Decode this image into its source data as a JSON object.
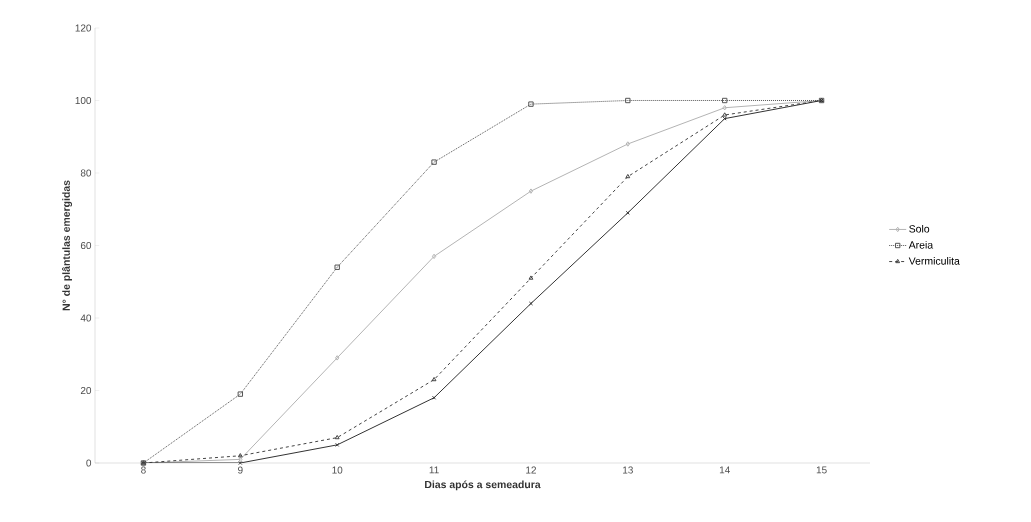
{
  "chart_data": {
    "type": "line",
    "xlabel": "Dias após a semeadura",
    "ylabel": "N° de plântulas emergidas",
    "x": [
      8,
      9,
      10,
      11,
      12,
      13,
      14,
      15
    ],
    "series": [
      {
        "name": "Solo",
        "color": "#b4b4b4",
        "marker": "diamond",
        "line_style": "solid",
        "values": [
          0,
          1,
          29,
          57,
          75,
          88,
          98,
          100
        ]
      },
      {
        "name": "Areia",
        "color": "#555555",
        "marker": "square",
        "line_style": "dotted",
        "values": [
          0,
          19,
          54,
          83,
          99,
          100,
          100,
          100
        ]
      },
      {
        "name": "Vermiculita",
        "color": "#444444",
        "marker": "triangle",
        "line_style": "dashed",
        "values": [
          0,
          2,
          7,
          23,
          51,
          79,
          96,
          100
        ]
      },
      {
        "color": "#333333",
        "marker": "cross",
        "line_style": "solid",
        "values": [
          0,
          0,
          5,
          18,
          44,
          69,
          95,
          100
        ]
      }
    ],
    "xlim": [
      7.5,
      15.5
    ],
    "ylim": [
      0,
      120
    ],
    "xticks": [
      8,
      9,
      10,
      11,
      12,
      13,
      14,
      15
    ],
    "yticks": [
      0,
      20,
      40,
      60,
      80,
      100,
      120
    ],
    "legend": "right",
    "grid": false
  }
}
